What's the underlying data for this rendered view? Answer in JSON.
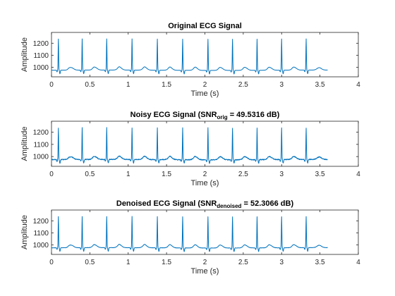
{
  "chart_data": [
    {
      "type": "line",
      "title_parts": [
        {
          "text": "Original ECG Signal"
        }
      ],
      "xlabel": "Time (s)",
      "ylabel": "Amplitude",
      "xlim": [
        0,
        4
      ],
      "ylim": [
        920,
        1290
      ],
      "xticks": [
        0,
        0.5,
        1,
        1.5,
        2,
        2.5,
        3,
        3.5,
        4
      ],
      "xtick_labels": [
        "0",
        "0.5",
        "1",
        "1.5",
        "2",
        "2.5",
        "3",
        "3.5",
        "4"
      ],
      "yticks": [
        1000,
        1100,
        1200
      ],
      "ytick_labels": [
        "1000",
        "1100",
        "1200"
      ],
      "color": "#0072BD",
      "series": [
        {
          "x_range": [
            0,
            3.6
          ],
          "baseline": 975,
          "r_peaks": [
            0.09,
            0.4,
            0.72,
            1.05,
            1.38,
            1.71,
            2.04,
            2.36,
            2.68,
            3.0,
            3.32
          ],
          "r_peak_amplitude": 1235,
          "noise": 0
        }
      ]
    },
    {
      "type": "line",
      "title_parts": [
        {
          "text": "Noisy ECG Signal (SNR"
        },
        {
          "text": "orig",
          "sub": true
        },
        {
          "text": " = 49.5316 dB)"
        }
      ],
      "xlabel": "Time (s)",
      "ylabel": "Amplitude",
      "xlim": [
        0,
        4
      ],
      "ylim": [
        920,
        1290
      ],
      "xticks": [
        0,
        0.5,
        1,
        1.5,
        2,
        2.5,
        3,
        3.5,
        4
      ],
      "xtick_labels": [
        "0",
        "0.5",
        "1",
        "1.5",
        "2",
        "2.5",
        "3",
        "3.5",
        "4"
      ],
      "yticks": [
        1000,
        1100,
        1200
      ],
      "ytick_labels": [
        "1000",
        "1100",
        "1200"
      ],
      "color": "#0072BD",
      "series": [
        {
          "x_range": [
            0,
            3.6
          ],
          "baseline": 975,
          "r_peaks": [
            0.09,
            0.4,
            0.72,
            1.05,
            1.38,
            1.71,
            2.04,
            2.36,
            2.68,
            3.0,
            3.32
          ],
          "r_peak_amplitude": 1235,
          "noise": 7
        }
      ]
    },
    {
      "type": "line",
      "title_parts": [
        {
          "text": "Denoised ECG Signal (SNR"
        },
        {
          "text": "denoised",
          "sub": true
        },
        {
          "text": " = 52.3066 dB)"
        }
      ],
      "xlabel": "Time (s)",
      "ylabel": "Amplitude",
      "xlim": [
        0,
        4
      ],
      "ylim": [
        920,
        1290
      ],
      "xticks": [
        0,
        0.5,
        1,
        1.5,
        2,
        2.5,
        3,
        3.5,
        4
      ],
      "xtick_labels": [
        "0",
        "0.5",
        "1",
        "1.5",
        "2",
        "2.5",
        "3",
        "3.5",
        "4"
      ],
      "yticks": [
        1000,
        1100,
        1200
      ],
      "ytick_labels": [
        "1000",
        "1100",
        "1200"
      ],
      "color": "#0072BD",
      "series": [
        {
          "x_range": [
            0,
            3.6
          ],
          "baseline": 975,
          "r_peaks": [
            0.09,
            0.4,
            0.72,
            1.05,
            1.38,
            1.71,
            2.04,
            2.36,
            2.68,
            3.0,
            3.32
          ],
          "r_peak_amplitude": 1235,
          "noise": 2
        }
      ]
    }
  ]
}
